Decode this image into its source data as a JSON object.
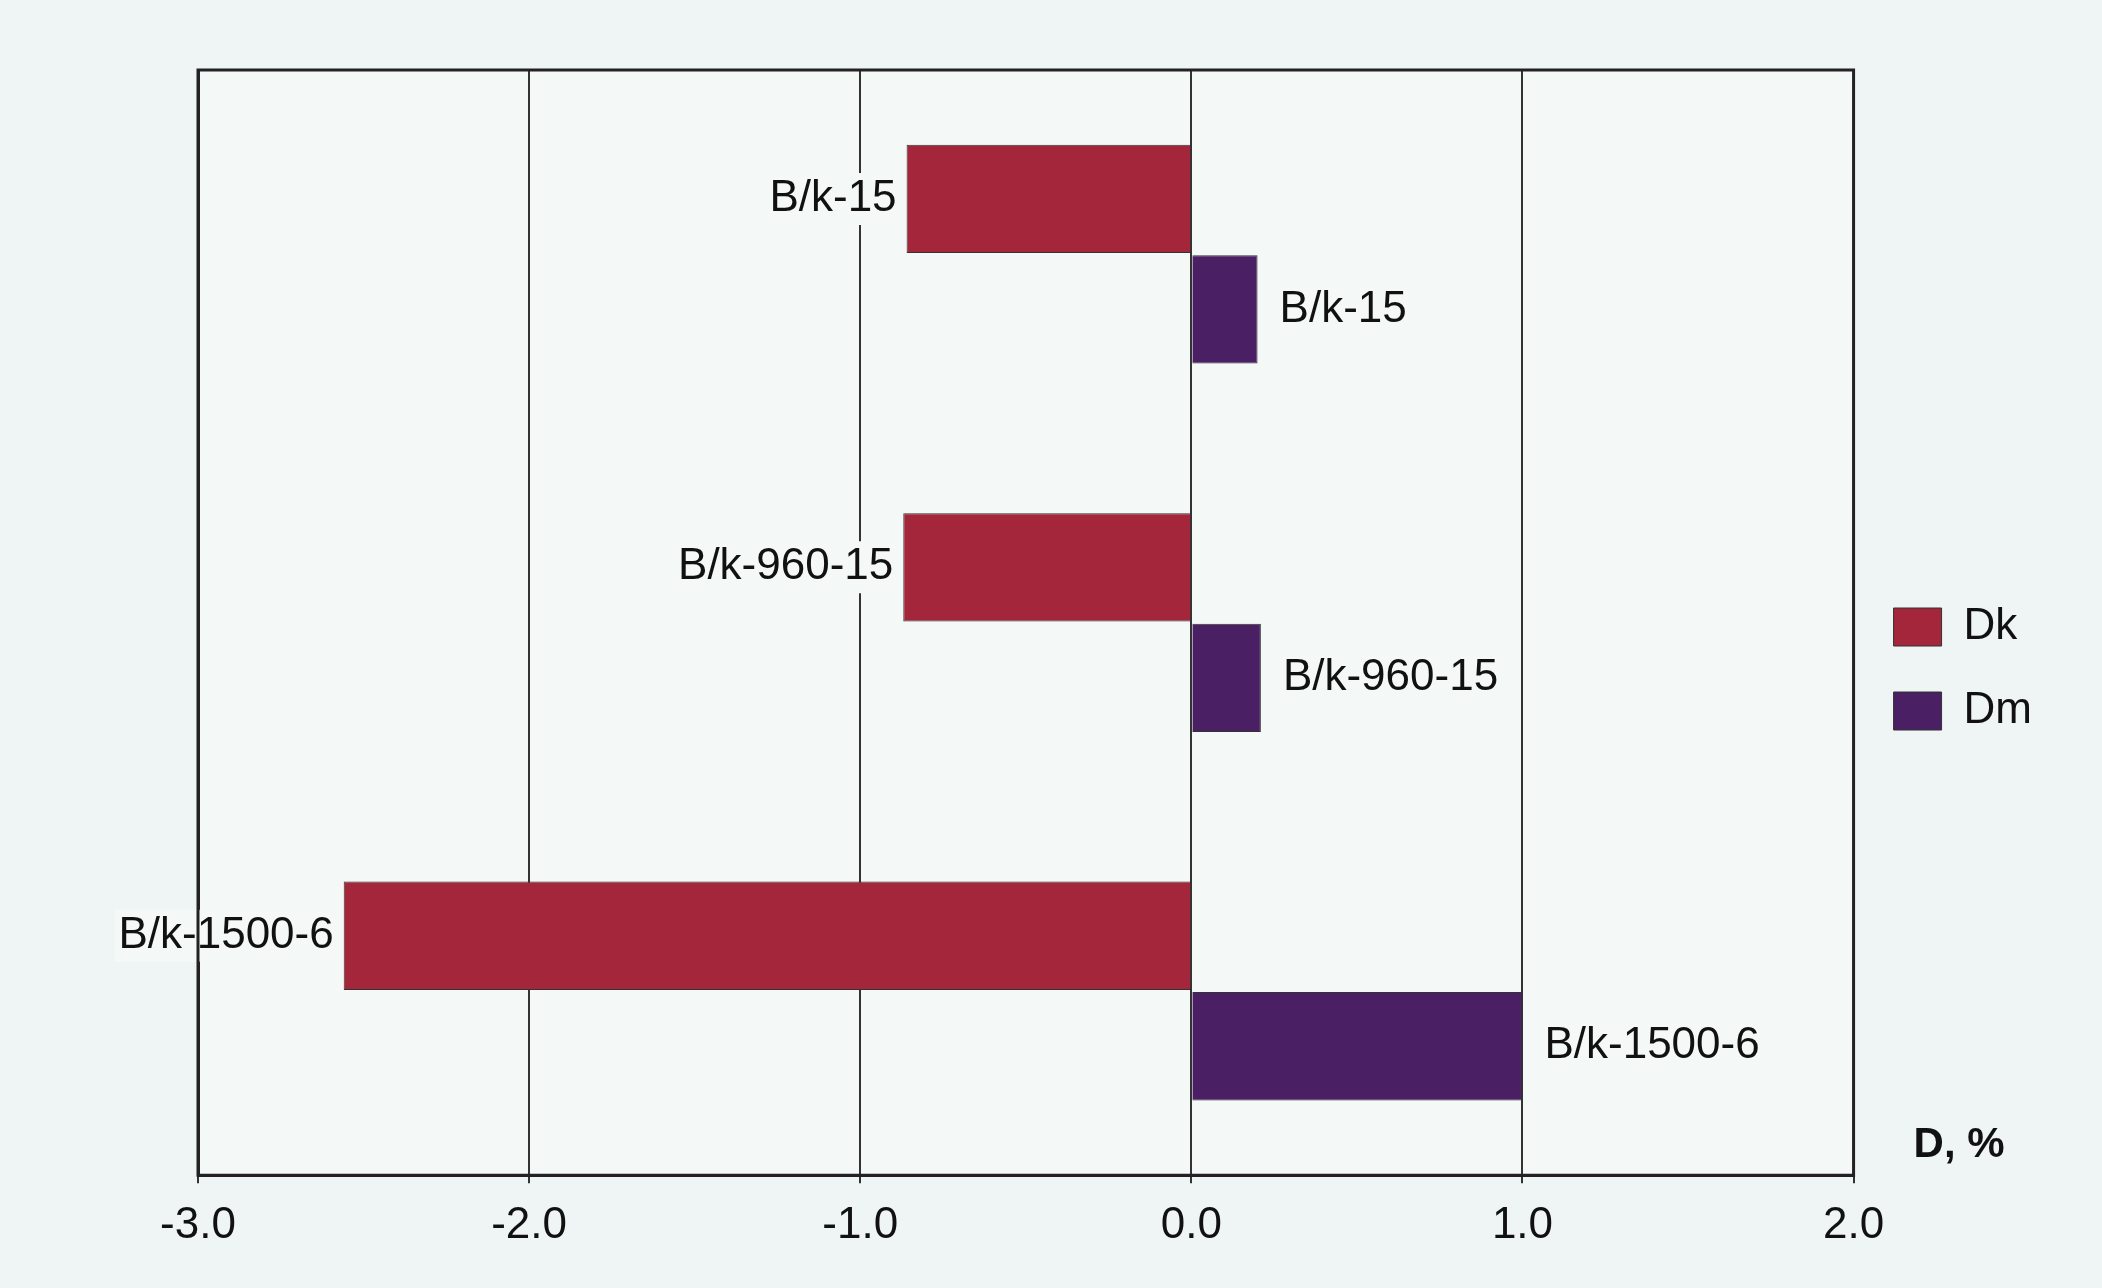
{
  "chart_data": {
    "type": "bar",
    "orientation": "horizontal",
    "xlabel": "D, %",
    "categories": [
      "B/k-15",
      "B/k-960-15",
      "B/k-1500-6"
    ],
    "series": [
      {
        "name": "Dk",
        "color": "#a3263a",
        "values": [
          -0.86,
          -0.87,
          -2.56
        ]
      },
      {
        "name": "Dm",
        "color": "#4b1f63",
        "values": [
          0.2,
          0.21,
          1.0
        ]
      }
    ],
    "xlim": [
      -3,
      2
    ],
    "xticks": [
      {
        "value": -3,
        "label": "-3.0"
      },
      {
        "value": -2,
        "label": "-2.0"
      },
      {
        "value": -1,
        "label": "-1.0"
      },
      {
        "value": 0,
        "label": "0.0"
      },
      {
        "value": 1,
        "label": "1.0"
      },
      {
        "value": 2,
        "label": "2.0"
      }
    ],
    "grid": "x",
    "legend": "right",
    "tick_labels": "x"
  }
}
